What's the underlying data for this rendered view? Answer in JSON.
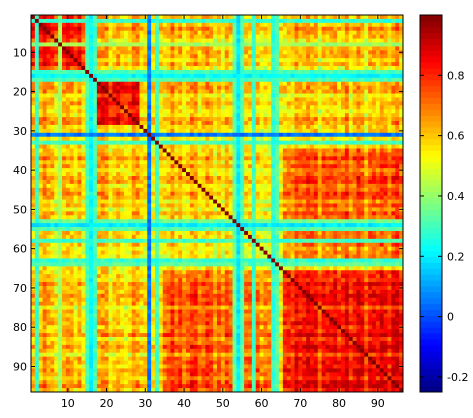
{
  "chart_data": {
    "type": "heatmap",
    "title": "",
    "xlabel": "",
    "ylabel": "",
    "n": 96,
    "xlim": [
      0.5,
      96.5
    ],
    "ylim": [
      0.5,
      96.5
    ],
    "y_direction": "top-to-bottom",
    "x_ticks": [
      10,
      20,
      30,
      40,
      50,
      60,
      70,
      80,
      90
    ],
    "y_ticks": [
      10,
      20,
      30,
      40,
      50,
      60,
      70,
      80,
      90
    ],
    "colorbar": {
      "colormap": "jet",
      "clim": [
        -0.25,
        1.0
      ],
      "ticks": [
        -0.2,
        0,
        0.2,
        0.4,
        0.6,
        0.8
      ],
      "tick_labels": [
        "-0.2",
        "0",
        "0.2",
        "0.4",
        "0.6",
        "0.8"
      ]
    },
    "diagonal_value": 1.0,
    "baseline_value": 0.58,
    "low_correlation_variables": [
      {
        "index": 2,
        "value": 0.28
      },
      {
        "index": 8,
        "value": 0.42
      },
      {
        "index": 15,
        "value": 0.3
      },
      {
        "index": 16,
        "value": 0.22
      },
      {
        "index": 17,
        "value": 0.3
      },
      {
        "index": 31,
        "value": 0.05
      },
      {
        "index": 33,
        "value": 0.3
      },
      {
        "index": 53,
        "value": 0.35
      },
      {
        "index": 54,
        "value": 0.2
      },
      {
        "index": 55,
        "value": 0.32
      },
      {
        "index": 58,
        "value": 0.3
      },
      {
        "index": 63,
        "value": 0.28
      },
      {
        "index": 64,
        "value": 0.33
      }
    ],
    "high_correlation_blocks": [
      {
        "rows": [
          1,
          14
        ],
        "cols": [
          1,
          14
        ],
        "value": 0.76
      },
      {
        "rows": [
          18,
          28
        ],
        "cols": [
          18,
          28
        ],
        "value": 0.8
      },
      {
        "rows": [
          66,
          96
        ],
        "cols": [
          66,
          96
        ],
        "value": 0.82
      },
      {
        "rows": [
          35,
          64
        ],
        "cols": [
          66,
          96
        ],
        "value": 0.72
      }
    ]
  }
}
